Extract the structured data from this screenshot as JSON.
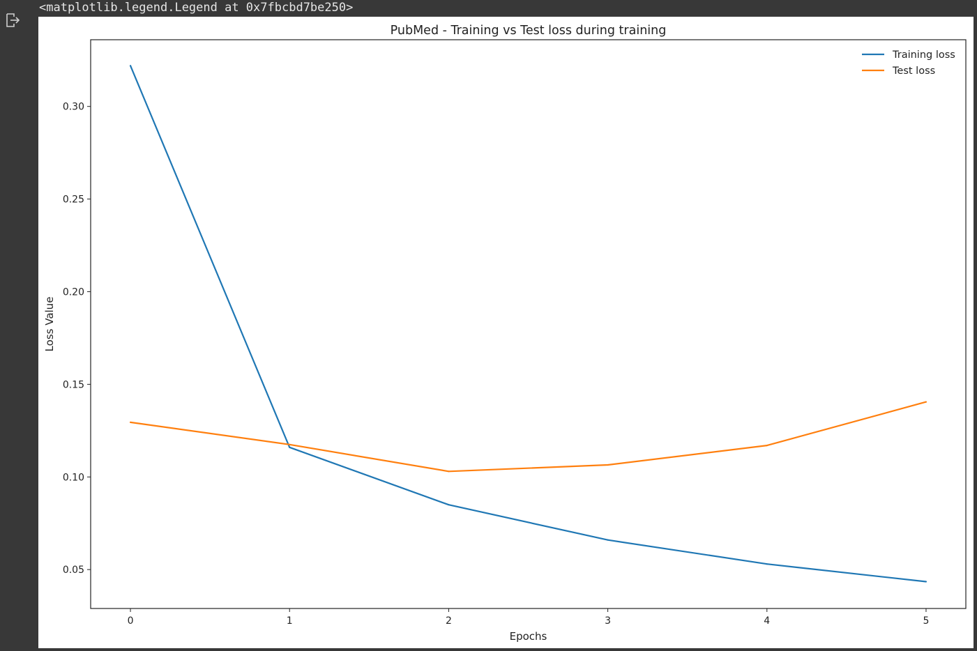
{
  "output": {
    "repr_text": "<matplotlib.legend.Legend at 0x7fbcbd7be250>",
    "icon": "output-redirect-icon"
  },
  "chart_data": {
    "type": "line",
    "title": "PubMed - Training vs Test loss during training",
    "xlabel": "Epochs",
    "ylabel": "Loss Value",
    "x": [
      0,
      1,
      2,
      3,
      4,
      5
    ],
    "xlim": [
      -0.25,
      5.25
    ],
    "ylim": [
      0.029,
      0.336
    ],
    "xticks": [
      0,
      1,
      2,
      3,
      4,
      5
    ],
    "yticks": [
      0.05,
      0.1,
      0.15,
      0.2,
      0.25,
      0.3
    ],
    "ytick_labels": [
      "0.05",
      "0.10",
      "0.15",
      "0.20",
      "0.25",
      "0.30"
    ],
    "grid": false,
    "legend_position": "top-right",
    "series": [
      {
        "name": "Training loss",
        "color": "#1f77b4",
        "values": [
          0.322,
          0.116,
          0.085,
          0.066,
          0.053,
          0.0435
        ]
      },
      {
        "name": "Test loss",
        "color": "#ff7f0e",
        "values": [
          0.1295,
          0.1175,
          0.103,
          0.1065,
          0.117,
          0.1405
        ]
      }
    ]
  }
}
